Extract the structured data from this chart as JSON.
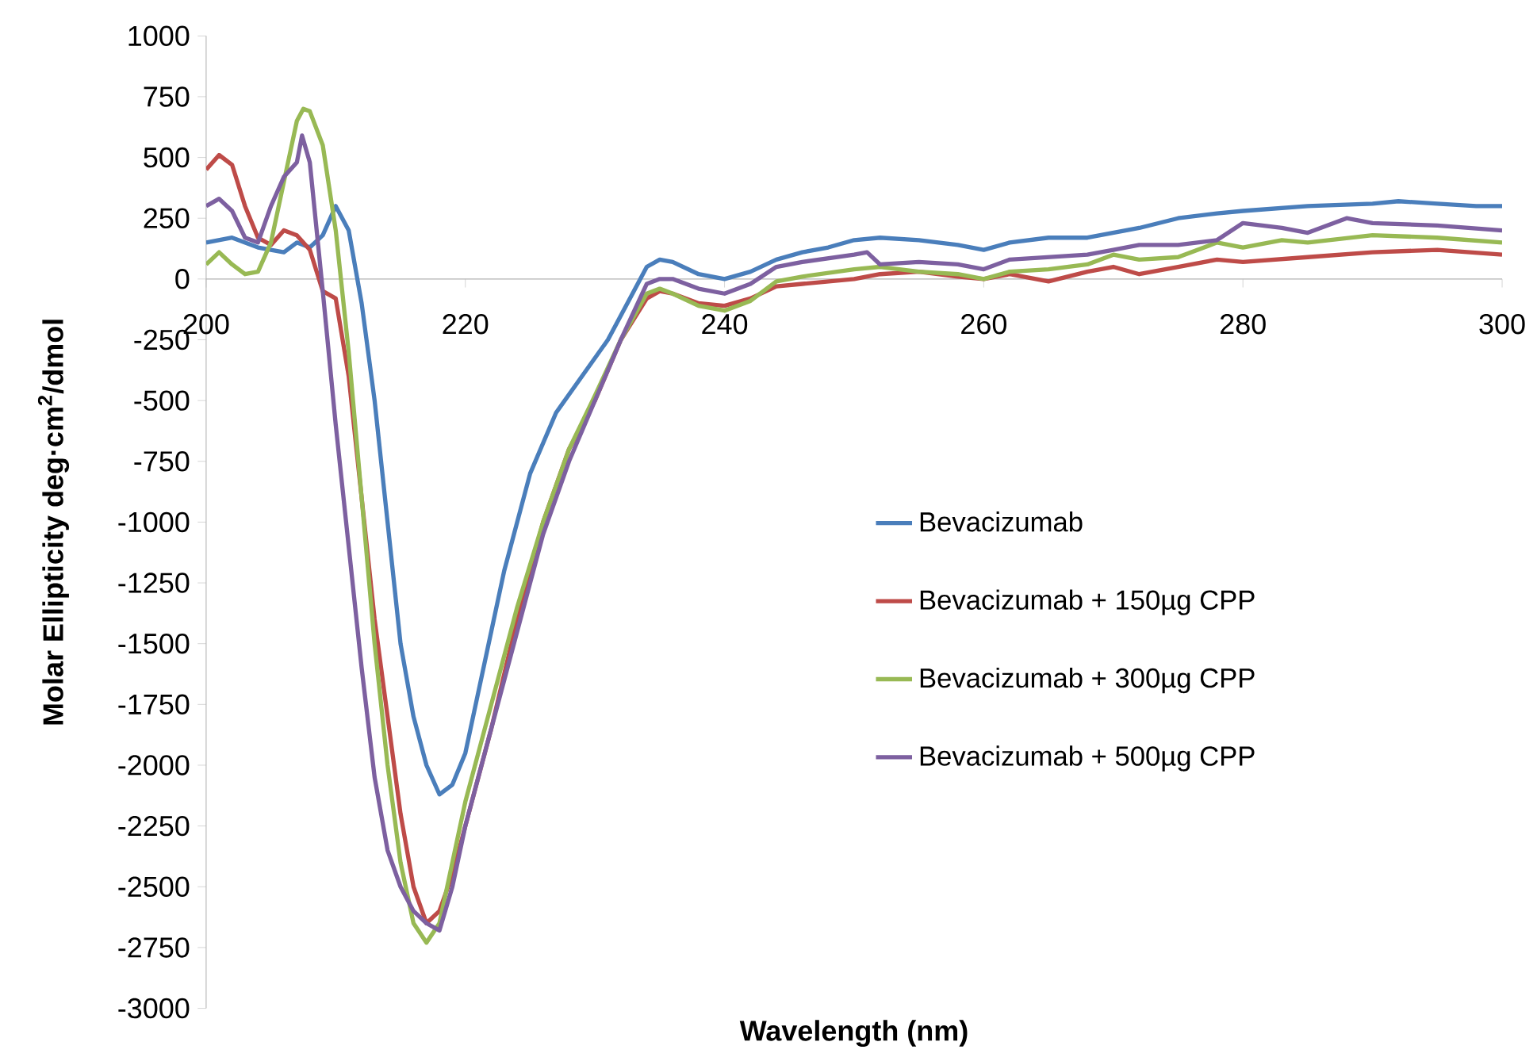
{
  "chart_data": {
    "type": "line",
    "xlabel": "Wavelength (nm)",
    "ylabel": "Molar Ellipticity  deg·cm$^{2}$/dmol",
    "xlim": [
      200,
      300
    ],
    "ylim": [
      -3000,
      1000
    ],
    "xticks": [
      200,
      220,
      240,
      260,
      280,
      300
    ],
    "yticks": [
      -3000,
      -2750,
      -2500,
      -2250,
      -2000,
      -1750,
      -1500,
      -1250,
      -1000,
      -750,
      -500,
      -250,
      0,
      250,
      500,
      750,
      1000
    ],
    "grid": false,
    "legend": "right",
    "marker": "none",
    "line_style": "solid",
    "series": [
      {
        "name": "Bevacizumab",
        "color": "#4a7ebb",
        "x": [
          200,
          202,
          204,
          206,
          207,
          208,
          209,
          210,
          211,
          212,
          213,
          214,
          215,
          216,
          217,
          218,
          219,
          220,
          221,
          222,
          223,
          225,
          227,
          229,
          231,
          233,
          234,
          235,
          236,
          238,
          240,
          242,
          244,
          246,
          248,
          250,
          252,
          255,
          258,
          260,
          262,
          265,
          268,
          270,
          272,
          275,
          278,
          280,
          285,
          290,
          292,
          295,
          298,
          300
        ],
        "values": [
          150,
          170,
          130,
          110,
          150,
          130,
          180,
          300,
          200,
          -100,
          -500,
          -1000,
          -1500,
          -1800,
          -2000,
          -2120,
          -2080,
          -1950,
          -1700,
          -1450,
          -1200,
          -800,
          -550,
          -400,
          -250,
          -50,
          50,
          80,
          70,
          20,
          0,
          30,
          80,
          110,
          130,
          160,
          170,
          160,
          140,
          120,
          150,
          170,
          170,
          190,
          210,
          250,
          270,
          280,
          300,
          310,
          320,
          310,
          300,
          300
        ]
      },
      {
        "name": "Bevacizumab + 150µg CPP",
        "color": "#be4b48",
        "x": [
          200,
          201,
          202,
          203,
          204,
          205,
          206,
          207,
          208,
          209,
          210,
          211,
          212,
          213,
          214,
          215,
          216,
          217,
          218,
          219,
          220,
          222,
          224,
          226,
          228,
          230,
          232,
          234,
          235,
          236,
          238,
          240,
          242,
          244,
          246,
          250,
          252,
          255,
          258,
          260,
          262,
          265,
          268,
          270,
          272,
          275,
          278,
          280,
          285,
          290,
          295,
          300
        ],
        "values": [
          450,
          510,
          470,
          300,
          170,
          140,
          200,
          180,
          120,
          -50,
          -80,
          -400,
          -900,
          -1400,
          -1800,
          -2200,
          -2500,
          -2650,
          -2600,
          -2450,
          -2250,
          -1850,
          -1400,
          -1000,
          -700,
          -500,
          -250,
          -80,
          -50,
          -60,
          -100,
          -110,
          -80,
          -30,
          -20,
          0,
          20,
          30,
          10,
          0,
          20,
          -10,
          30,
          50,
          20,
          50,
          80,
          70,
          90,
          110,
          120,
          100
        ]
      },
      {
        "name": "Bevacizumab + 300µg CPP",
        "color": "#98b954",
        "x": [
          200,
          201,
          202,
          203,
          204,
          205,
          206,
          207,
          207.5,
          208,
          209,
          210,
          211,
          212,
          213,
          214,
          215,
          216,
          217,
          218,
          219,
          220,
          222,
          224,
          226,
          228,
          230,
          232,
          234,
          235,
          236,
          238,
          240,
          242,
          244,
          246,
          250,
          252,
          255,
          258,
          260,
          262,
          265,
          268,
          270,
          272,
          275,
          278,
          280,
          283,
          285,
          290,
          295,
          300
        ],
        "values": [
          60,
          110,
          60,
          20,
          30,
          150,
          400,
          650,
          700,
          690,
          550,
          200,
          -300,
          -900,
          -1500,
          -2000,
          -2400,
          -2650,
          -2730,
          -2650,
          -2400,
          -2150,
          -1750,
          -1350,
          -1000,
          -700,
          -480,
          -250,
          -60,
          -40,
          -60,
          -110,
          -130,
          -90,
          -10,
          10,
          40,
          50,
          30,
          20,
          0,
          30,
          40,
          60,
          100,
          80,
          90,
          150,
          130,
          160,
          150,
          180,
          170,
          150
        ]
      },
      {
        "name": "Bevacizumab + 500µg CPP",
        "color": "#7d60a0",
        "x": [
          200,
          201,
          202,
          203,
          204,
          205,
          206,
          207,
          207.4,
          208,
          209,
          210,
          211,
          212,
          213,
          214,
          215,
          216,
          217,
          218,
          219,
          220,
          222,
          224,
          226,
          228,
          230,
          232,
          234,
          235,
          236,
          238,
          240,
          242,
          244,
          246,
          250,
          251,
          252,
          255,
          258,
          260,
          262,
          265,
          268,
          270,
          272,
          275,
          278,
          280,
          283,
          285,
          288,
          290,
          295,
          300
        ],
        "values": [
          300,
          330,
          280,
          170,
          150,
          300,
          420,
          480,
          590,
          480,
          -50,
          -600,
          -1100,
          -1600,
          -2050,
          -2350,
          -2500,
          -2600,
          -2650,
          -2680,
          -2500,
          -2250,
          -1850,
          -1450,
          -1050,
          -750,
          -500,
          -250,
          -20,
          0,
          0,
          -40,
          -60,
          -20,
          50,
          70,
          100,
          110,
          60,
          70,
          60,
          40,
          80,
          90,
          100,
          120,
          140,
          140,
          160,
          230,
          210,
          190,
          250,
          230,
          220,
          200
        ]
      }
    ]
  }
}
